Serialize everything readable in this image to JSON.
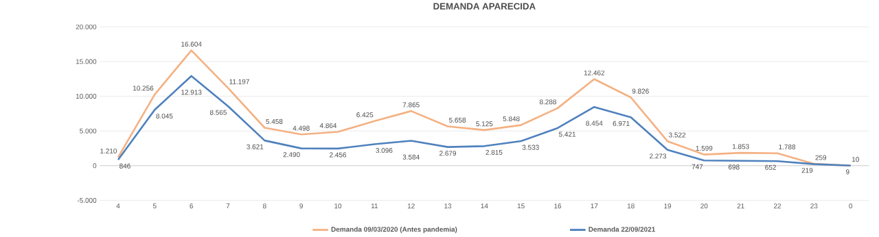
{
  "chart_data": {
    "type": "line",
    "title": "DEMANDA APARECIDA",
    "categories": [
      "4",
      "5",
      "6",
      "7",
      "8",
      "9",
      "10",
      "11",
      "12",
      "13",
      "14",
      "15",
      "16",
      "17",
      "18",
      "19",
      "20",
      "21",
      "22",
      "23",
      "0"
    ],
    "series": [
      {
        "name": "Demanda 09/03/2020 (Antes pandemia)",
        "color": "#f4b183",
        "values": [
          1210,
          10256,
          16604,
          11197,
          5458,
          4498,
          4864,
          6425,
          7865,
          5658,
          5125,
          5848,
          8288,
          12462,
          9826,
          3522,
          1599,
          1853,
          1788,
          259,
          10
        ],
        "value_labels": [
          "1.210",
          "10.256",
          "16.604",
          "11.197",
          "5.458",
          "4.498",
          "4.864",
          "6.425",
          "7.865",
          "5.658",
          "5.125",
          "5.848",
          "8.288",
          "12.462",
          "9.826",
          "3.522",
          "1.599",
          "1.853",
          "1.788",
          "259",
          "10"
        ]
      },
      {
        "name": "Demanda 22/09/2021",
        "color": "#4f81bd",
        "values": [
          846,
          8045,
          12913,
          8565,
          3621,
          2490,
          2456,
          3096,
          3584,
          2679,
          2815,
          3533,
          5421,
          8454,
          6971,
          2273,
          747,
          698,
          652,
          219,
          9
        ],
        "value_labels": [
          "846",
          "8.045",
          "12.913",
          "8.565",
          "3.621",
          "2.490",
          "2.456",
          "3.096",
          "3.584",
          "2.679",
          "2.815",
          "3.533",
          "5.421",
          "8.454",
          "6.971",
          "2.273",
          "747",
          "698",
          "652",
          "219",
          "9"
        ]
      }
    ],
    "ylim": [
      -5000,
      20000
    ],
    "yticks": [
      {
        "value": -5000,
        "label": "-5.000"
      },
      {
        "value": 0,
        "label": "0"
      },
      {
        "value": 5000,
        "label": "5.000"
      },
      {
        "value": 10000,
        "label": "10.000"
      },
      {
        "value": 15000,
        "label": "15.000"
      },
      {
        "value": 20000,
        "label": "20.000"
      }
    ],
    "grid": "y",
    "legend": "bottom",
    "marker": "none",
    "line_style": "solid"
  }
}
